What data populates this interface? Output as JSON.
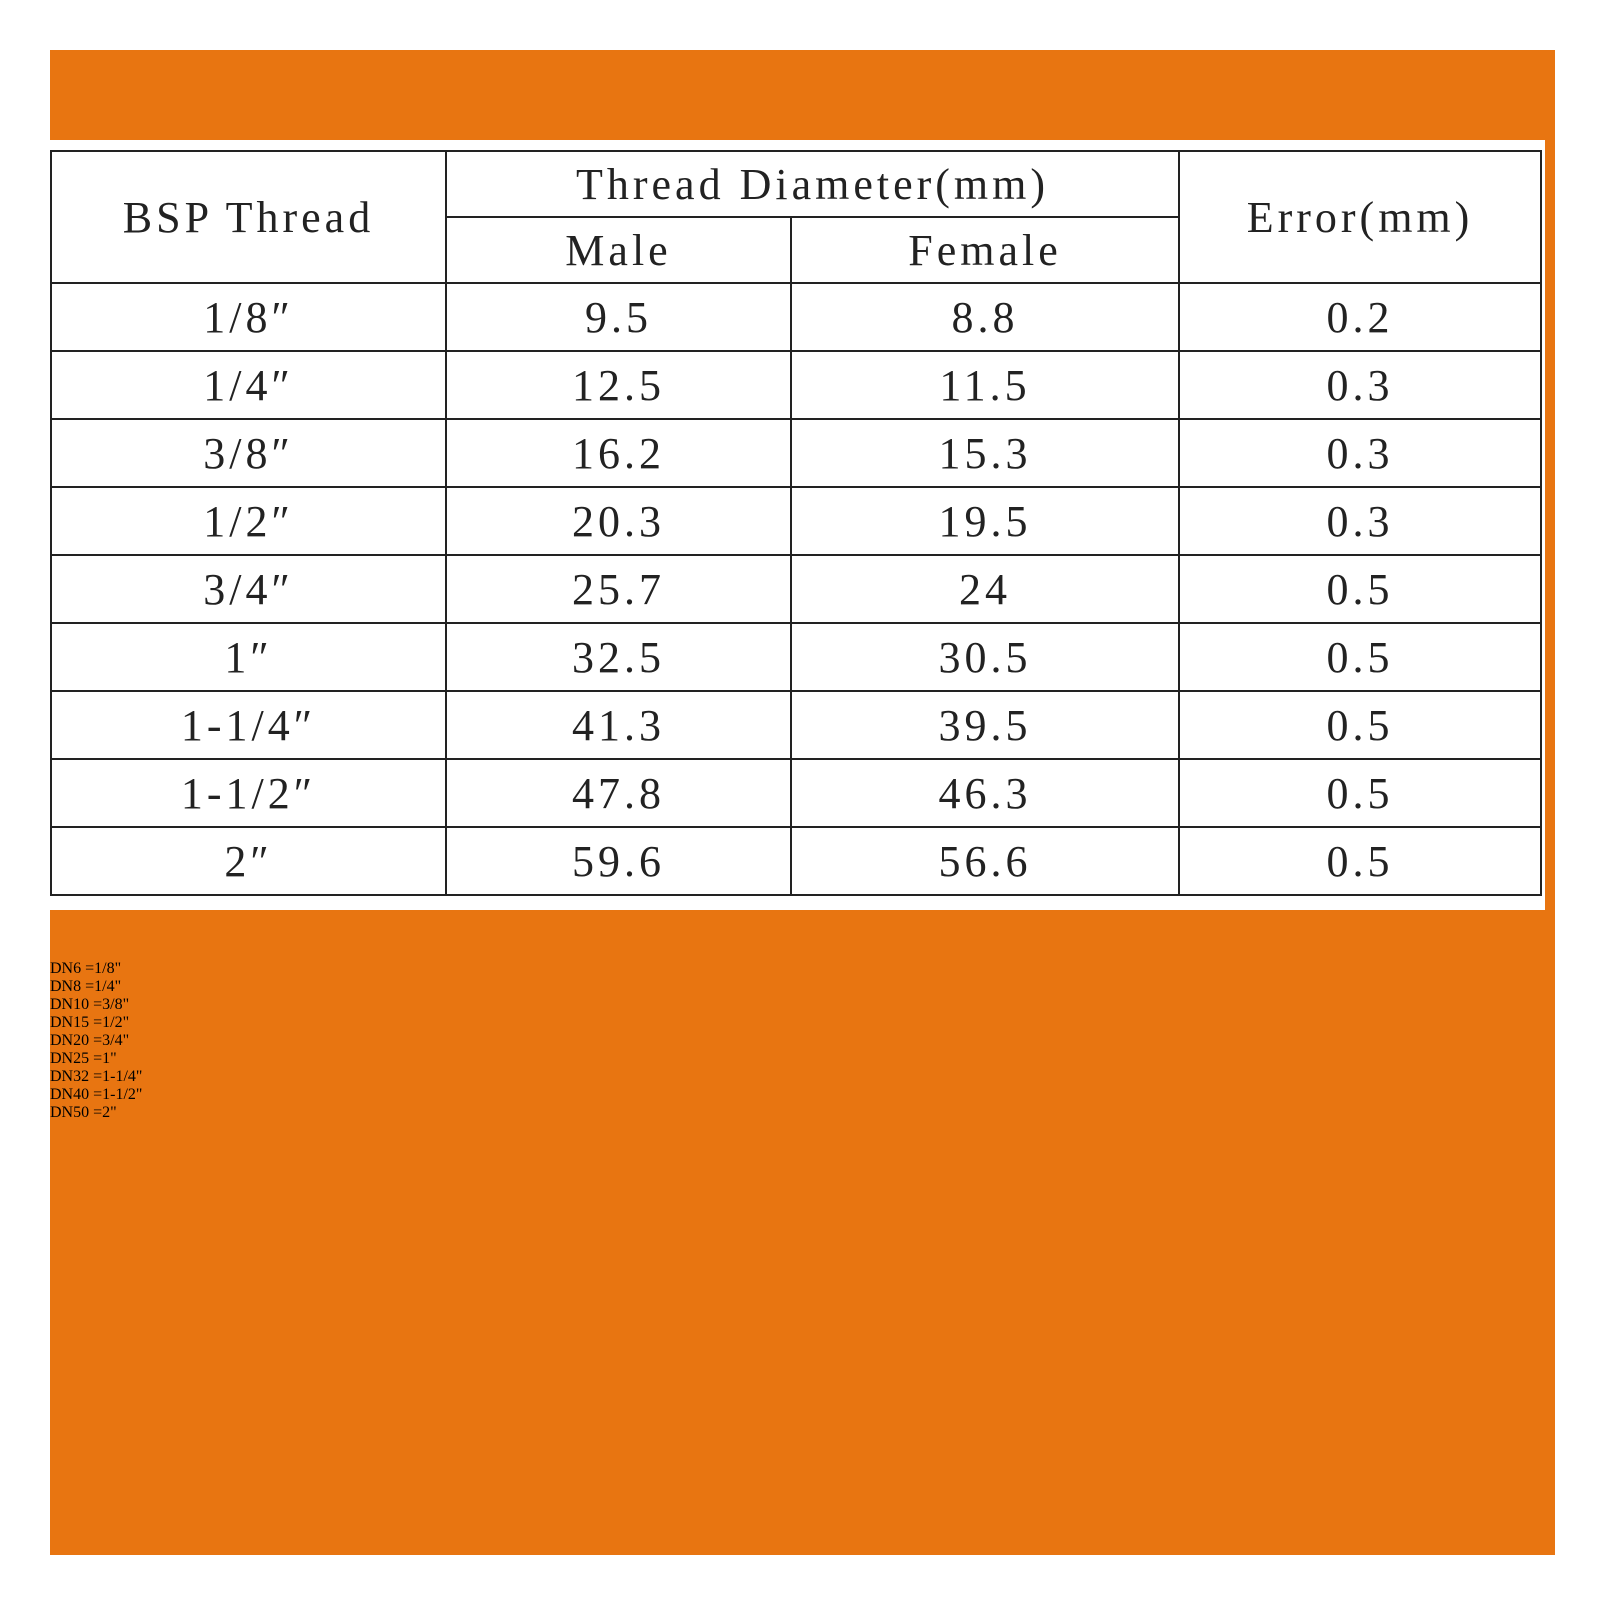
{
  "table": {
    "header": {
      "thread": "BSP Thread",
      "diameter": "Thread Diameter(mm)",
      "male": "Male",
      "female": "Female",
      "error": "Error(mm)"
    },
    "rows": [
      [
        "1/8″",
        9.5,
        8.8,
        0.2
      ],
      [
        "1/4″",
        12.5,
        11.5,
        0.3
      ],
      [
        "3/8″",
        16.2,
        15.3,
        0.3
      ],
      [
        "1/2″",
        20.3,
        19.5,
        0.3
      ],
      [
        "3/4″",
        25.7,
        24,
        0.5
      ],
      [
        "1″",
        32.5,
        30.5,
        0.5
      ],
      [
        "1-1/4″",
        41.3,
        39.5,
        0.5
      ],
      [
        "1-1/2″",
        47.8,
        46.3,
        0.5
      ],
      [
        "2″",
        59.6,
        56.6,
        0.5
      ]
    ]
  },
  "conversions": [
    "DN6 =1/8\"",
    "DN8 =1/4\"",
    "DN10 =3/8\"",
    "DN15 =1/2\"",
    "DN20 =3/4\"",
    "DN25 =1\"",
    "DN32 =1-1/4\"",
    "DN40 =1-1/2\"",
    "DN50 =2\""
  ]
}
